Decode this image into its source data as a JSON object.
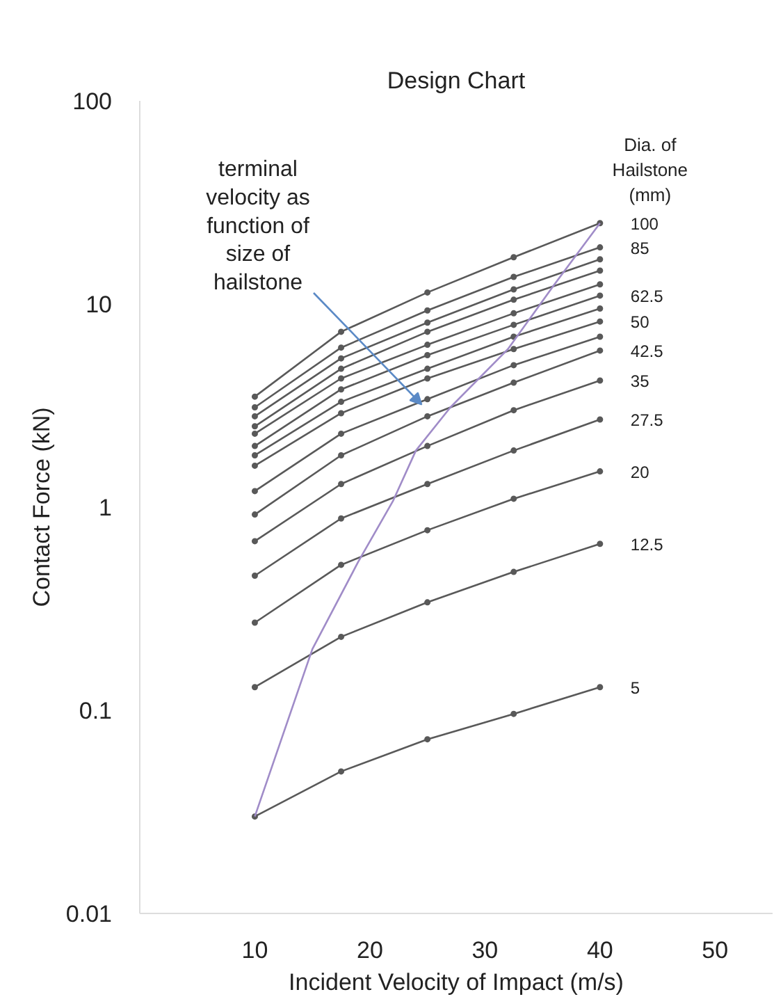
{
  "chart_data": {
    "type": "line",
    "title": "Design Chart",
    "xlabel": "Incident Velocity of Impact (m/s)",
    "ylabel": "Contact Force (kN)",
    "legend_title": "Dia. of\nHailstone\n(mm)",
    "log": "y",
    "xlim": [
      0,
      55
    ],
    "xticks": [
      10,
      20,
      30,
      40,
      50
    ],
    "ylim": [
      0.01,
      100
    ],
    "yticks": [
      0.01,
      0.1,
      1,
      10,
      100
    ],
    "marker": "circle",
    "line_style": "solid",
    "x": [
      10,
      17.5,
      25,
      32.5,
      40
    ],
    "series": [
      {
        "name": "5",
        "color": "#595959",
        "values": [
          0.03,
          0.05,
          0.072,
          0.096,
          0.13
        ]
      },
      {
        "name": "12.5",
        "color": "#595959",
        "values": [
          0.13,
          0.23,
          0.34,
          0.48,
          0.66
        ]
      },
      {
        "name": "20",
        "color": "#595959",
        "values": [
          0.27,
          0.52,
          0.77,
          1.1,
          1.5
        ]
      },
      {
        "name": "27.5",
        "color": "#595959",
        "values": [
          0.46,
          0.88,
          1.3,
          1.9,
          2.7
        ]
      },
      {
        "name": "35",
        "color": "#595959",
        "values": [
          0.68,
          1.3,
          2.0,
          3.0,
          4.2
        ]
      },
      {
        "name": "42.5",
        "color": "#595959",
        "values": [
          0.92,
          1.8,
          2.8,
          4.1,
          5.9
        ]
      },
      {
        "color": "#595959",
        "values": [
          1.2,
          2.3,
          3.4,
          5.0,
          6.9
        ]
      },
      {
        "name": "50",
        "color": "#595959",
        "values": [
          1.6,
          2.9,
          4.3,
          6.0,
          8.2
        ]
      },
      {
        "color": "#595959",
        "values": [
          1.8,
          3.3,
          4.8,
          6.9,
          9.5
        ]
      },
      {
        "name": "62.5",
        "color": "#595959",
        "values": [
          2.0,
          3.8,
          5.6,
          7.9,
          11
        ]
      },
      {
        "color": "#595959",
        "values": [
          2.3,
          4.3,
          6.3,
          9.0,
          12.5
        ]
      },
      {
        "color": "#595959",
        "values": [
          2.5,
          4.8,
          7.3,
          10.5,
          14.6
        ]
      },
      {
        "color": "#595959",
        "values": [
          2.8,
          5.4,
          8.1,
          11.8,
          16.6
        ]
      },
      {
        "name": "85",
        "color": "#595959",
        "values": [
          3.1,
          6.1,
          9.3,
          13.6,
          19
        ]
      },
      {
        "name": "100",
        "color": "#595959",
        "values": [
          3.5,
          7.3,
          11.4,
          17,
          25
        ]
      },
      {
        "color": "#a08cc8",
        "marker": "none",
        "x": [
          10,
          15,
          19,
          22,
          24,
          27,
          32,
          36,
          40
        ],
        "values": [
          0.03,
          0.2,
          0.54,
          1.07,
          1.9,
          3.1,
          6.0,
          12.4,
          25
        ]
      }
    ],
    "annotations": [
      {
        "text": "terminal\nvelocity as\nfunction of\nsize of\nhailstone",
        "x": 24.5,
        "y": 3.2
      }
    ]
  }
}
